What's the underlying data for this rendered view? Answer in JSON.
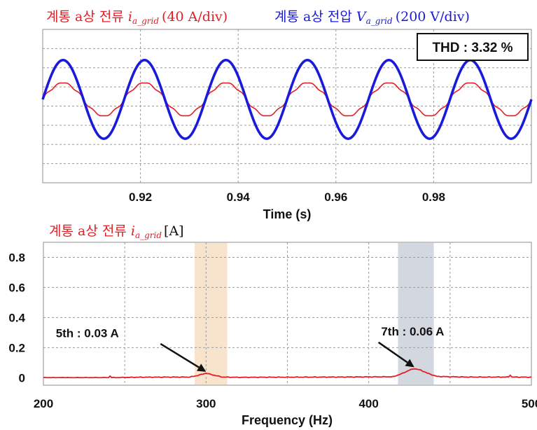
{
  "chart_data": [
    {
      "type": "line",
      "legend": [
        {
          "prefix": "계통 a상 전류 ",
          "symbol": "i",
          "subscript": "a_grid",
          "scale": "(40 A/div)",
          "color": "#e31e24"
        },
        {
          "prefix": "계통 a상 전압 ",
          "symbol": "V",
          "subscript": "a_grid",
          "scale": "(200 V/div)",
          "color": "#1a1adb"
        }
      ],
      "thd_label": "THD : 3.32 %",
      "xlabel": "Time (s)",
      "ylabel": "",
      "x_ticks": [
        "0.92",
        "0.94",
        "0.96",
        "0.98"
      ],
      "x_tick_values": [
        0.92,
        0.94,
        0.96,
        0.98
      ],
      "xlim": [
        0.9,
        1.0
      ],
      "ylim": [
        -4,
        4
      ],
      "grid": true,
      "series": [
        {
          "name": "계통 a상 전류",
          "unit_per_div": "40 A/div",
          "color": "#e31e24",
          "frequency_hz": 60,
          "amplitude_div": 0.86,
          "offset_div": 0.35,
          "x": [
            0.9,
            1.0
          ]
        },
        {
          "name": "계통 a상 전압",
          "unit_per_div": "200 V/div",
          "color": "#1a1adb",
          "frequency_hz": 60,
          "amplitude_div": 2.05,
          "offset_div": 0.35,
          "x": [
            0.9,
            1.0
          ]
        }
      ]
    },
    {
      "type": "line",
      "title_prefix": "계통 a상 전류 ",
      "title_symbol": "i",
      "title_subscript": "a_grid",
      "title_unit": "[A]",
      "xlabel": "Frequency (Hz)",
      "ylabel": "",
      "xlim": [
        200,
        500
      ],
      "ylim": [
        -0.05,
        0.9
      ],
      "x_ticks": [
        "200",
        "300",
        "400",
        "500"
      ],
      "x_tick_values": [
        200,
        300,
        400,
        500
      ],
      "y_ticks": [
        "0",
        "0.2",
        "0.4",
        "0.6",
        "0.8"
      ],
      "y_tick_values": [
        0,
        0.2,
        0.4,
        0.6,
        0.8
      ],
      "grid": true,
      "highlight_bands": [
        {
          "x": [
            293,
            313
          ],
          "color": "#f8e3cd"
        },
        {
          "x": [
            418,
            440
          ],
          "color": "#d3d7e0"
        }
      ],
      "annotations": [
        {
          "text": "5th : 0.03 A",
          "x": 300,
          "y": 0.03
        },
        {
          "text": "7th : 0.06 A",
          "x": 428,
          "y": 0.06
        }
      ],
      "series": [
        {
          "name": "계통 a상 전류",
          "color": "#e31e24",
          "x": [
            200,
            240,
            241,
            242,
            260,
            290,
            295,
            300,
            305,
            310,
            320,
            340,
            380,
            415,
            420,
            425,
            428,
            432,
            436,
            442,
            460,
            486,
            487,
            488,
            500
          ],
          "y": [
            0.0,
            0.0,
            0.012,
            0.0,
            0.003,
            0.004,
            0.015,
            0.03,
            0.016,
            0.004,
            0.002,
            0.003,
            0.004,
            0.006,
            0.025,
            0.05,
            0.06,
            0.05,
            0.03,
            0.008,
            0.004,
            0.004,
            0.018,
            0.004,
            0.003
          ]
        }
      ]
    }
  ]
}
